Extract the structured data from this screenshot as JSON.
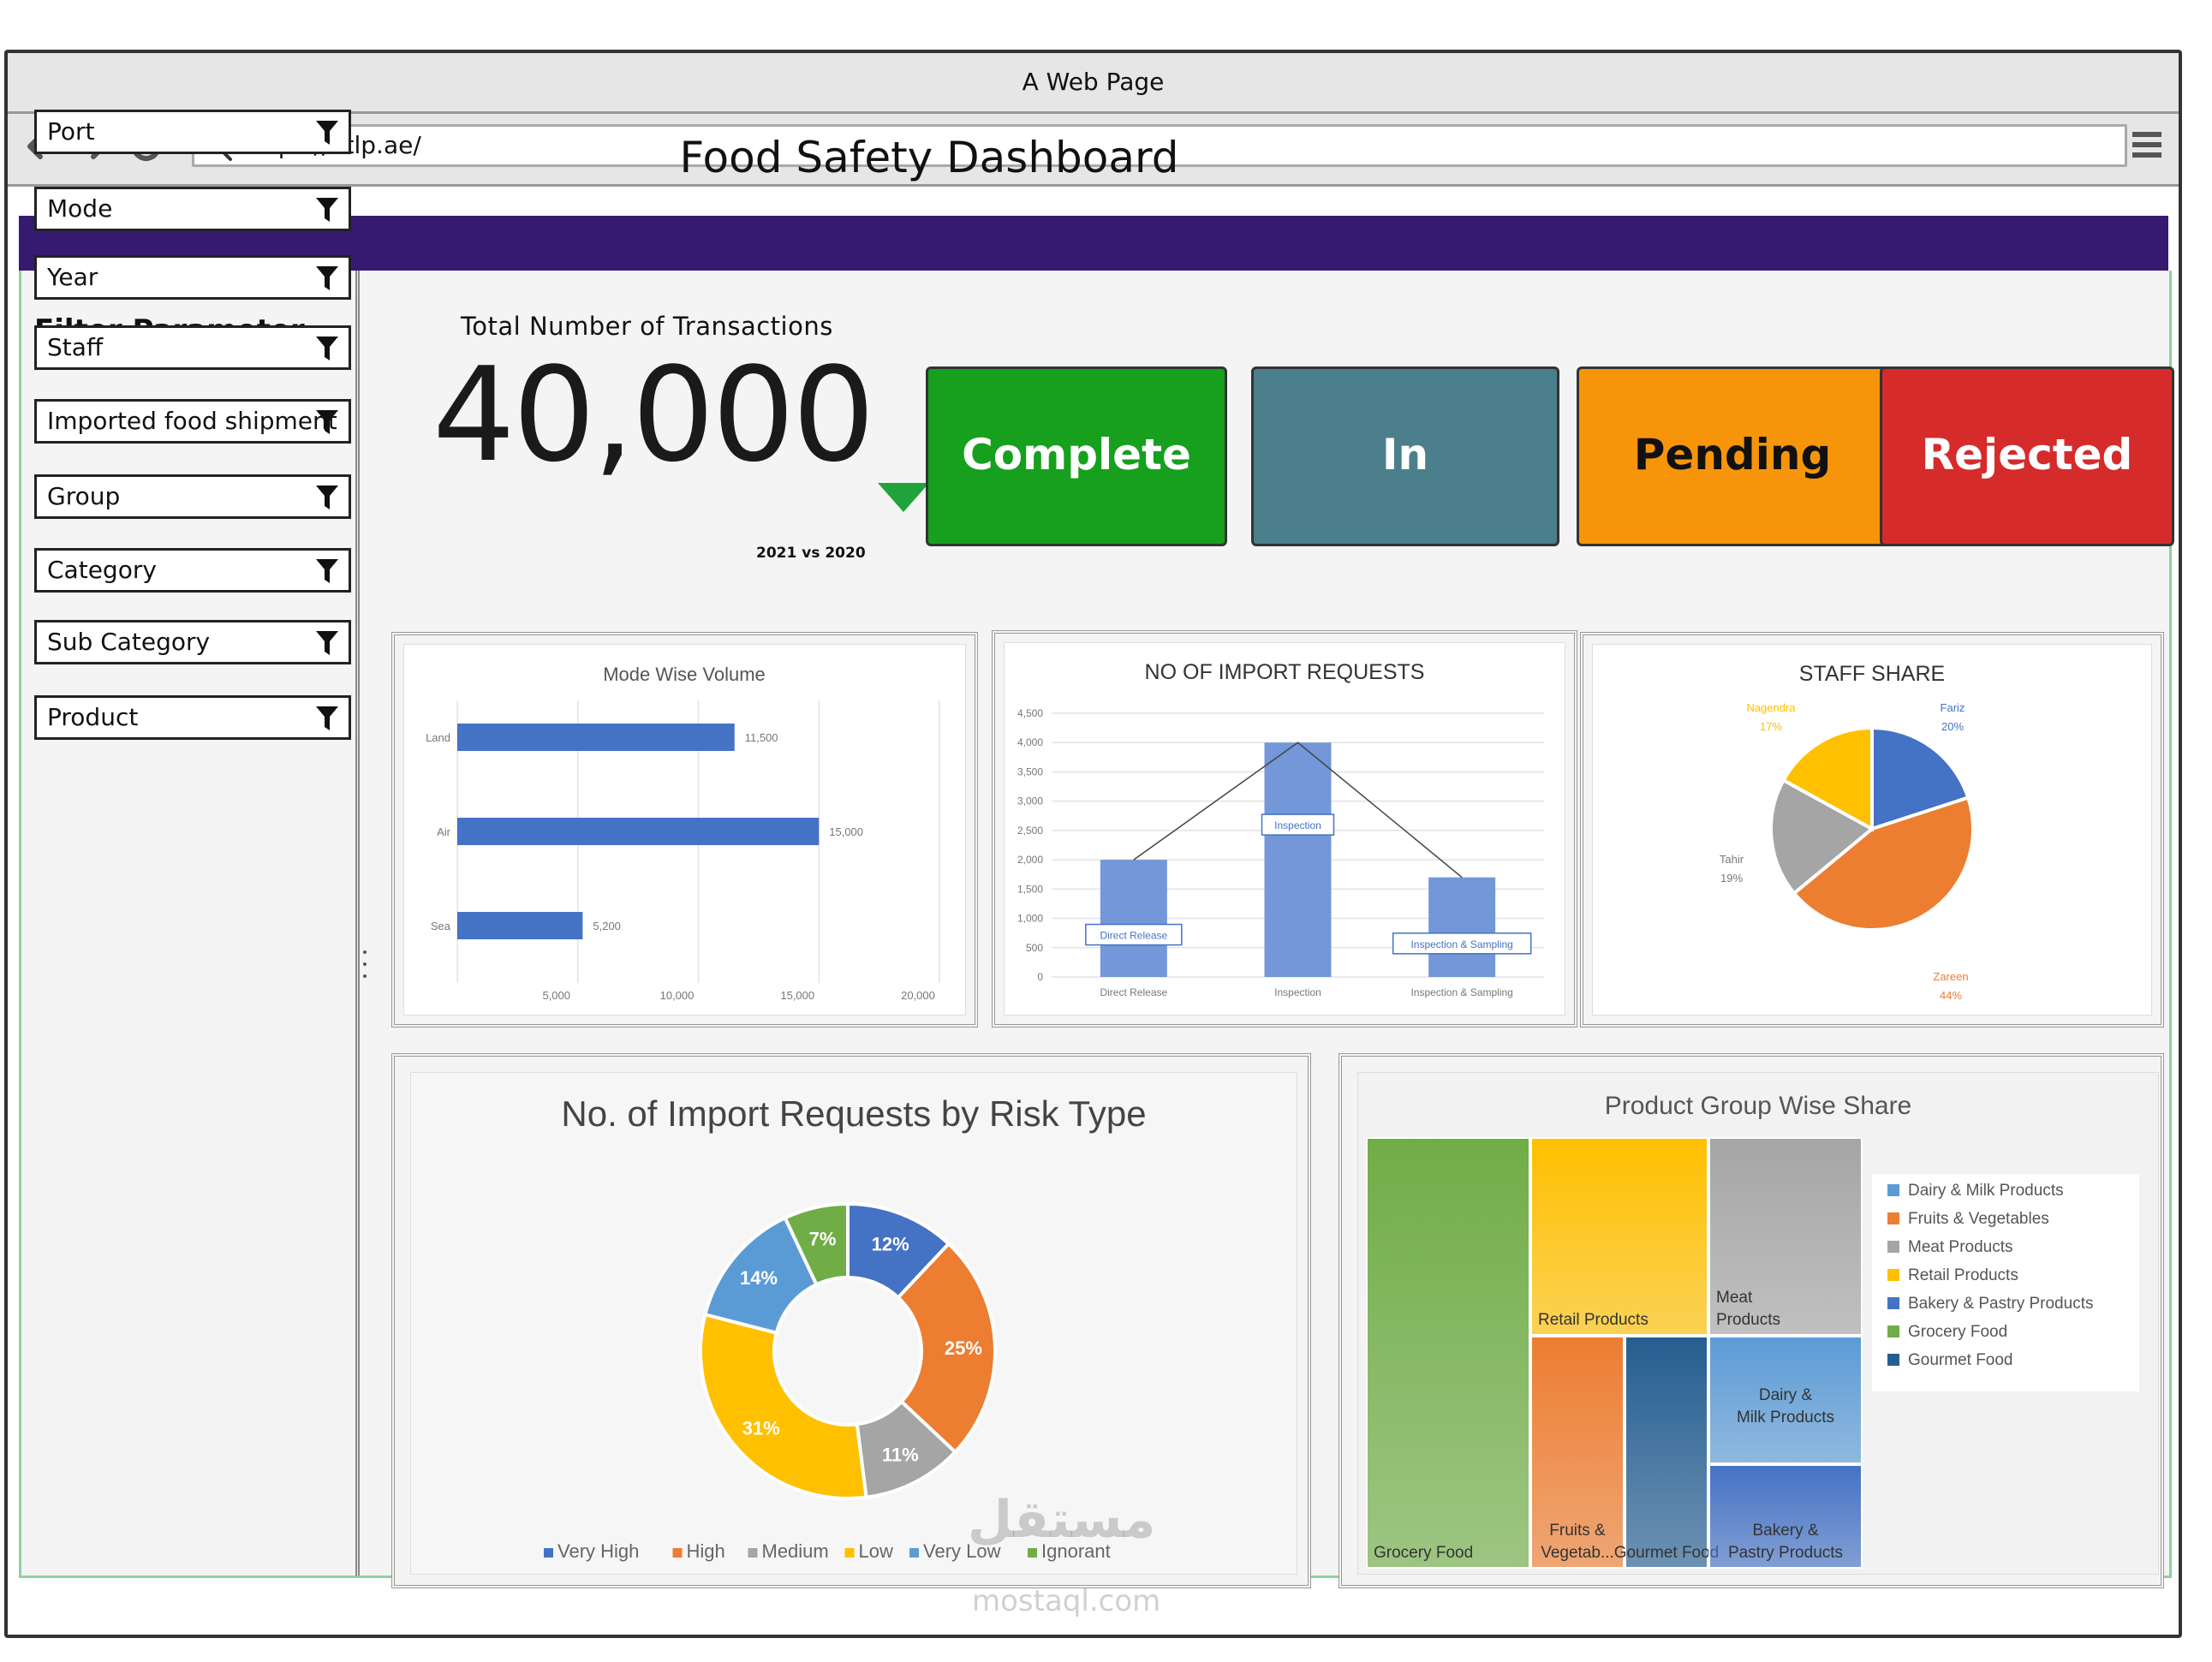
{
  "browser": {
    "window_title": "A Web Page",
    "url": "https://atlp.ae/"
  },
  "page": {
    "title": "Food Safety Dashboard",
    "banner_color": "#361a72"
  },
  "sidebar": {
    "title": "Filter Parameter",
    "filters": [
      {
        "label": "Port"
      },
      {
        "label": "Mode"
      },
      {
        "label": "Year"
      },
      {
        "label": "Staff"
      },
      {
        "label": "Imported food shipment"
      },
      {
        "label": "Group"
      },
      {
        "label": "Category"
      },
      {
        "label": "Sub Category"
      },
      {
        "label": "Product"
      }
    ]
  },
  "kpi": {
    "label": "Total Number of Transactions",
    "value": "40,000",
    "comparison": "2021 vs 2020",
    "trend": "down",
    "trend_color": "#1fa33a"
  },
  "status_buttons": [
    {
      "label": "Complete",
      "color": "#16a01d",
      "text_color": "#ffffff"
    },
    {
      "label": "In",
      "color": "#4b7f8b",
      "text_color": "#ffffff"
    },
    {
      "label": "Pending",
      "color": "#f7950a",
      "text_color": "#111111"
    },
    {
      "label": "Rejected",
      "color": "#d62b2b",
      "text_color": "#ffffff"
    }
  ],
  "chart_data": [
    {
      "type": "bar",
      "orientation": "horizontal",
      "title": "Mode Wise Volume",
      "categories": [
        "Land",
        "Air",
        "Sea"
      ],
      "values": [
        11500,
        15000,
        5200
      ],
      "value_labels": [
        "11,500",
        "15,000",
        "5,200"
      ],
      "xlim": [
        0,
        20000
      ],
      "xticks": [
        "5,000",
        "10,000",
        "15,000",
        "20,000"
      ],
      "color": "#4472c4",
      "grid": true
    },
    {
      "type": "bar",
      "title": "NO OF IMPORT REQUESTS",
      "categories": [
        "Direct Release",
        "Inspection",
        "Inspection & Sampling"
      ],
      "values": [
        2000,
        4000,
        1700
      ],
      "bar_labels": [
        "Direct Release",
        "Inspection",
        "Inspection & Sampling"
      ],
      "ylim": [
        0,
        4500
      ],
      "yticks": [
        "0",
        "500",
        "1,000",
        "1,500",
        "2,000",
        "2,500",
        "3,000",
        "3,500",
        "4,000",
        "4,500"
      ],
      "color": "#7397d8",
      "line_overlay": true,
      "grid": true
    },
    {
      "type": "pie",
      "title": "STAFF SHARE",
      "slices": [
        {
          "name": "Fariz",
          "value": 20,
          "label": "20%",
          "color": "#4472c4"
        },
        {
          "name": "Zareen",
          "value": 44,
          "label": "44%",
          "color": "#ed7d31"
        },
        {
          "name": "Tahir",
          "value": 19,
          "label": "19%",
          "color": "#a5a5a5"
        },
        {
          "name": "Nagendra",
          "value": 17,
          "label": "17%",
          "color": "#ffc000"
        }
      ]
    },
    {
      "type": "pie",
      "subtype": "donut",
      "title": "No. of Import Requests by Risk Type",
      "slices": [
        {
          "name": "Very High",
          "value": 12,
          "label": "12%",
          "color": "#4472c4"
        },
        {
          "name": "High",
          "value": 25,
          "label": "25%",
          "color": "#ed7d31"
        },
        {
          "name": "Medium",
          "value": 11,
          "label": "11%",
          "color": "#a5a5a5"
        },
        {
          "name": "Low",
          "value": 31,
          "label": "31%",
          "color": "#ffc000"
        },
        {
          "name": "Very Low",
          "value": 14,
          "label": "14%",
          "color": "#5b9bd5"
        },
        {
          "name": "Ignorant",
          "value": 7,
          "label": "7%",
          "color": "#70ad47"
        }
      ],
      "legend": "bottom"
    },
    {
      "type": "treemap",
      "title": "Product Group Wise Share",
      "items": [
        {
          "name": "Grocery Food",
          "label": "Grocery Food",
          "color": "#70ad47"
        },
        {
          "name": "Retail Products",
          "label": "Retail Products",
          "color": "#ffc000"
        },
        {
          "name": "Meat Products",
          "label": "Meat Products",
          "color": "#a5a5a5"
        },
        {
          "name": "Fruits & Vegetables",
          "label": "Fruits & Vegetab...",
          "color": "#ed7d31"
        },
        {
          "name": "Gourmet Food",
          "label": "Gourmet Food",
          "color": "#255e91"
        },
        {
          "name": "Dairy & Milk Products",
          "label": "Dairy & Milk Products",
          "color": "#5b9bd5"
        },
        {
          "name": "Bakery & Pastry Products",
          "label": "Bakery & Pastry Products",
          "color": "#4472c4"
        }
      ],
      "legend": [
        {
          "name": "Dairy & Milk Products",
          "color": "#5b9bd5"
        },
        {
          "name": "Fruits & Vegetables",
          "color": "#ed7d31"
        },
        {
          "name": "Meat Products",
          "color": "#a5a5a5"
        },
        {
          "name": "Retail Products",
          "color": "#ffc000"
        },
        {
          "name": "Bakery & Pastry Products",
          "color": "#4472c4"
        },
        {
          "name": "Grocery Food",
          "color": "#70ad47"
        },
        {
          "name": "Gourmet Food",
          "color": "#255e91"
        }
      ]
    }
  ],
  "watermark": {
    "text": "مستقل",
    "subtext": "mostaql.com"
  }
}
